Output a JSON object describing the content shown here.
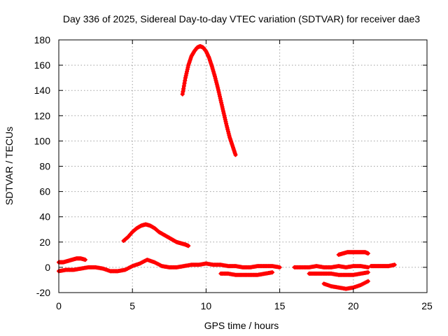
{
  "chart_data": {
    "type": "scatter",
    "title": "Day 336 of 2025, Sidereal Day-to-day VTEC variation (SDTVAR) for receiver dae3",
    "xlabel": "GPS time / hours",
    "ylabel": "SDTVAR / TECUs",
    "xlim": [
      0,
      25
    ],
    "ylim": [
      -20,
      180
    ],
    "xticks": [
      0,
      5,
      10,
      15,
      20,
      25
    ],
    "yticks": [
      -20,
      0,
      20,
      40,
      60,
      80,
      100,
      120,
      140,
      160,
      180
    ],
    "grid": true,
    "marker": "+",
    "color": "#ff0000",
    "series": [
      {
        "name": "arc-peak",
        "x": [
          8.4,
          8.6,
          8.8,
          9.0,
          9.2,
          9.4,
          9.6,
          9.8,
          10.0,
          10.2,
          10.4,
          10.6,
          10.8,
          11.0,
          11.2,
          11.4,
          11.6,
          11.8,
          12.0
        ],
        "y": [
          137,
          150,
          160,
          167,
          171,
          174,
          175,
          174,
          171,
          166,
          159,
          151,
          142,
          132,
          122,
          112,
          103,
          96,
          89
        ]
      },
      {
        "name": "arc-bump",
        "x": [
          4.4,
          4.7,
          5.0,
          5.3,
          5.6,
          5.9,
          6.2,
          6.5,
          6.8,
          7.1,
          7.4,
          7.7,
          8.0,
          8.3,
          8.6,
          8.8
        ],
        "y": [
          21,
          24,
          28,
          31,
          33,
          34,
          33,
          31,
          28,
          26,
          24,
          22,
          20,
          19,
          18,
          17
        ]
      },
      {
        "name": "arc-early",
        "x": [
          0.0,
          0.3,
          0.6,
          0.9,
          1.2,
          1.5,
          1.8
        ],
        "y": [
          4,
          4,
          5,
          6,
          7,
          7,
          6
        ]
      },
      {
        "name": "arc-base",
        "x": [
          0.0,
          0.5,
          1.0,
          1.5,
          2.0,
          2.5,
          3.0,
          3.5,
          4.0,
          4.5,
          5.0,
          5.5,
          6.0,
          6.5,
          7.0,
          7.5,
          8.0,
          8.5,
          9.0,
          9.5,
          10.0,
          10.5,
          11.0,
          11.5,
          12.0,
          12.5,
          13.0,
          13.5,
          14.0,
          14.5,
          15.0
        ],
        "y": [
          -3,
          -2,
          -2,
          -1,
          0,
          0,
          -1,
          -3,
          -3,
          -2,
          1,
          3,
          6,
          4,
          1,
          0,
          0,
          1,
          2,
          2,
          3,
          2,
          2,
          1,
          1,
          0,
          0,
          1,
          1,
          1,
          0
        ]
      },
      {
        "name": "arc-dip1",
        "x": [
          11.0,
          11.5,
          12.0,
          12.5,
          13.0,
          13.5,
          14.0,
          14.5
        ],
        "y": [
          -5,
          -5,
          -6,
          -6,
          -6,
          -6,
          -5,
          -4
        ]
      },
      {
        "name": "arc-late",
        "x": [
          16.0,
          16.5,
          17.0,
          17.5,
          18.0,
          18.5,
          19.0,
          19.5,
          20.0,
          20.5,
          21.0
        ],
        "y": [
          0,
          0,
          0,
          1,
          0,
          0,
          1,
          0,
          1,
          1,
          0
        ]
      },
      {
        "name": "arc-late2",
        "x": [
          21.2,
          21.6,
          22.0,
          22.4,
          22.8
        ],
        "y": [
          1,
          1,
          1,
          1,
          2
        ]
      },
      {
        "name": "arc-up",
        "x": [
          19.0,
          19.3,
          19.6,
          19.9,
          20.2,
          20.5,
          20.8,
          21.0
        ],
        "y": [
          10,
          11,
          12,
          12,
          12,
          12,
          12,
          11
        ]
      },
      {
        "name": "arc-dip2",
        "x": [
          17.0,
          17.5,
          18.0,
          18.5,
          19.0,
          19.5,
          20.0,
          20.5,
          21.0
        ],
        "y": [
          -5,
          -5,
          -5,
          -5,
          -6,
          -6,
          -6,
          -5,
          -4
        ]
      },
      {
        "name": "arc-dip3",
        "x": [
          18.0,
          18.5,
          19.0,
          19.5,
          20.0,
          20.5,
          21.0
        ],
        "y": [
          -13,
          -15,
          -16,
          -17,
          -16,
          -14,
          -11
        ]
      }
    ]
  }
}
